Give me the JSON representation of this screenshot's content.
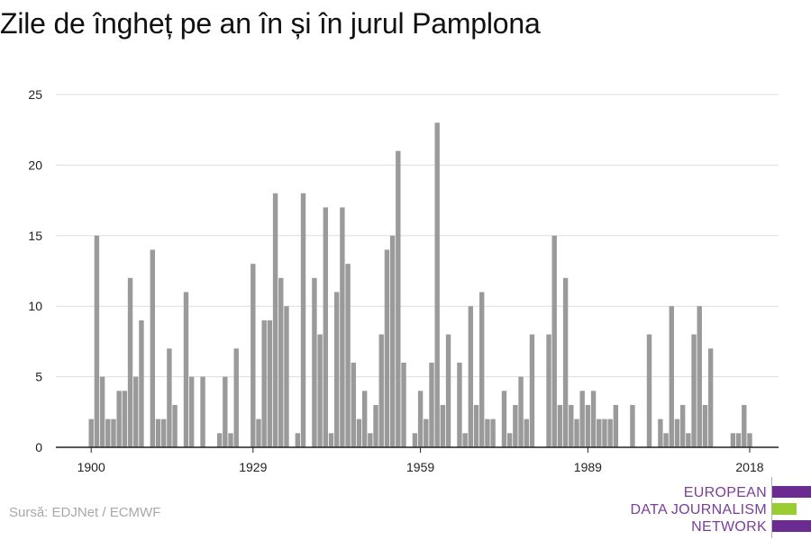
{
  "title": "Zile de îngheț pe an în și în jurul Pamplona",
  "source": "Sursă: EDJNet / ECMWF",
  "logo": {
    "lines": [
      "EUROPEAN",
      "DATA JOURNALISM",
      "NETWORK"
    ],
    "colors": {
      "purple": "#6a2c91",
      "green": "#9acd32",
      "text": "#7a3f98"
    }
  },
  "chart_data": {
    "type": "bar",
    "title": "Zile de îngheț pe an în și în jurul Pamplona",
    "xlabel": "",
    "ylabel": "",
    "x": [
      1900,
      1901,
      1902,
      1903,
      1904,
      1905,
      1906,
      1907,
      1908,
      1909,
      1910,
      1911,
      1912,
      1913,
      1914,
      1915,
      1916,
      1917,
      1918,
      1919,
      1920,
      1921,
      1922,
      1923,
      1924,
      1925,
      1926,
      1927,
      1928,
      1929,
      1930,
      1931,
      1932,
      1933,
      1934,
      1935,
      1936,
      1937,
      1938,
      1939,
      1940,
      1941,
      1942,
      1943,
      1944,
      1945,
      1946,
      1947,
      1948,
      1949,
      1950,
      1951,
      1952,
      1953,
      1954,
      1955,
      1956,
      1957,
      1958,
      1959,
      1960,
      1961,
      1962,
      1963,
      1964,
      1965,
      1966,
      1967,
      1968,
      1969,
      1970,
      1971,
      1972,
      1973,
      1974,
      1975,
      1976,
      1977,
      1978,
      1979,
      1980,
      1981,
      1982,
      1983,
      1984,
      1985,
      1986,
      1987,
      1988,
      1989,
      1990,
      1991,
      1992,
      1993,
      1994,
      1995,
      1996,
      1997,
      1998,
      1999,
      2000,
      2001,
      2002,
      2003,
      2004,
      2005,
      2006,
      2007,
      2008,
      2009,
      2010,
      2011,
      2012,
      2013,
      2014,
      2015,
      2016,
      2017,
      2018
    ],
    "values": [
      2,
      15,
      5,
      2,
      2,
      4,
      4,
      12,
      5,
      9,
      0,
      14,
      2,
      2,
      7,
      3,
      0,
      11,
      5,
      0,
      5,
      0,
      0,
      1,
      5,
      1,
      7,
      0,
      0,
      13,
      2,
      9,
      9,
      18,
      12,
      10,
      0,
      1,
      18,
      0,
      12,
      8,
      17,
      1,
      11,
      17,
      13,
      6,
      2,
      4,
      1,
      3,
      8,
      14,
      15,
      21,
      6,
      0,
      1,
      4,
      2,
      6,
      23,
      3,
      8,
      0,
      6,
      1,
      10,
      3,
      11,
      2,
      2,
      0,
      4,
      1,
      3,
      5,
      2,
      8,
      0,
      0,
      8,
      15,
      3,
      12,
      3,
      2,
      4,
      3,
      4,
      2,
      2,
      2,
      3,
      0,
      0,
      3,
      0,
      0,
      8,
      0,
      2,
      1,
      10,
      2,
      3,
      1,
      8,
      10,
      3,
      7,
      0,
      0,
      0,
      1,
      1,
      3,
      1
    ],
    "xticks": [
      1900,
      1929,
      1959,
      1989,
      2018
    ],
    "yticks": [
      0,
      5,
      10,
      15,
      20,
      25
    ],
    "ylim": [
      0,
      25
    ],
    "grid": true,
    "colors": {
      "bar": "#9a9a9a",
      "grid": "#dddddd",
      "axis": "#222222",
      "tick_label": "#222222"
    }
  }
}
